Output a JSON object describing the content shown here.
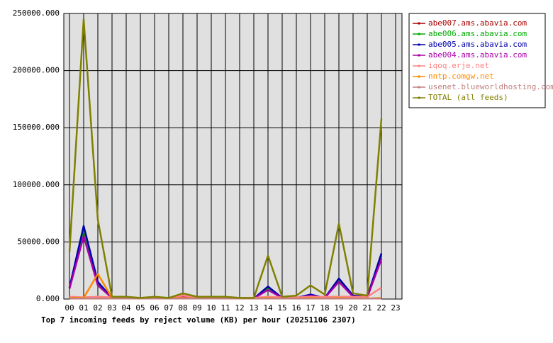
{
  "chart_data": {
    "type": "line",
    "title": "Top 7 incoming feeds by reject volume (KB) per hour (20251106 2307)",
    "categories": [
      "00",
      "01",
      "02",
      "03",
      "04",
      "05",
      "06",
      "07",
      "08",
      "09",
      "10",
      "11",
      "12",
      "13",
      "14",
      "15",
      "16",
      "17",
      "18",
      "19",
      "20",
      "21",
      "22",
      "23"
    ],
    "ylim": [
      0,
      250000
    ],
    "yticks": [
      {
        "value": 0,
        "label": "0.000"
      },
      {
        "value": 50000,
        "label": "50000.000"
      },
      {
        "value": 100000,
        "label": "100000.000"
      },
      {
        "value": 150000,
        "label": "150000.000"
      },
      {
        "value": 200000,
        "label": "200000.000"
      },
      {
        "value": 250000,
        "label": "250000.000"
      }
    ],
    "grid": true,
    "legend": "right",
    "series": [
      {
        "name": "abe007.ams.abavia.com",
        "color": "#aa0000",
        "values": [
          10000,
          60000,
          14000,
          1000,
          1000,
          500,
          1000,
          500,
          2000,
          1000,
          1000,
          1000,
          500,
          500,
          10000,
          1000,
          1000,
          3000,
          1000,
          17000,
          2000,
          1500,
          38000,
          null
        ]
      },
      {
        "name": "abe006.ams.abavia.com",
        "color": "#00aa00",
        "values": [
          10000,
          61000,
          14000,
          1000,
          1000,
          500,
          1000,
          500,
          2000,
          1000,
          1000,
          1000,
          500,
          500,
          10000,
          1000,
          1000,
          3000,
          1000,
          17000,
          2000,
          1500,
          39000,
          null
        ]
      },
      {
        "name": "abe005.ams.abavia.com",
        "color": "#0000aa",
        "values": [
          10000,
          64000,
          15000,
          1000,
          1000,
          500,
          1000,
          500,
          2000,
          1000,
          1000,
          1000,
          500,
          500,
          11000,
          1000,
          1000,
          4000,
          1000,
          18000,
          3000,
          2000,
          40000,
          null
        ]
      },
      {
        "name": "abe004.ams.abavia.com",
        "color": "#aa00aa",
        "values": [
          9000,
          55000,
          12000,
          1000,
          1000,
          500,
          1000,
          500,
          2000,
          1000,
          1000,
          1000,
          500,
          500,
          8000,
          1000,
          1000,
          3000,
          1000,
          15000,
          2000,
          1500,
          35000,
          null
        ]
      },
      {
        "name": "iqoq.erje.net",
        "color": "#ff8080",
        "values": [
          2000,
          1500,
          2000,
          1500,
          1500,
          1000,
          1500,
          1000,
          3000,
          1500,
          1500,
          1500,
          1000,
          1000,
          2000,
          1500,
          1500,
          2000,
          2000,
          2000,
          2000,
          2000,
          10000,
          null
        ]
      },
      {
        "name": "nntp.comgw.net",
        "color": "#ff8800",
        "values": [
          1000,
          1000,
          22000,
          1000,
          500,
          500,
          500,
          500,
          1000,
          500,
          500,
          500,
          500,
          500,
          1000,
          500,
          500,
          1000,
          500,
          1000,
          500,
          500,
          1000,
          null
        ]
      },
      {
        "name": "usenet.blueworldhosting.com",
        "color": "#c08080",
        "values": [
          500,
          500,
          500,
          500,
          500,
          500,
          500,
          500,
          500,
          500,
          500,
          500,
          500,
          500,
          500,
          500,
          500,
          500,
          500,
          500,
          500,
          500,
          500,
          null
        ]
      },
      {
        "name": "TOTAL (all feeds)",
        "color": "#808000",
        "values": [
          41000,
          245000,
          69500,
          2000,
          2000,
          1000,
          2000,
          1000,
          5000,
          2000,
          2000,
          2000,
          1000,
          1000,
          38000,
          2000,
          3000,
          12000,
          4000,
          66000,
          5000,
          3000,
          158000,
          null
        ]
      }
    ]
  }
}
